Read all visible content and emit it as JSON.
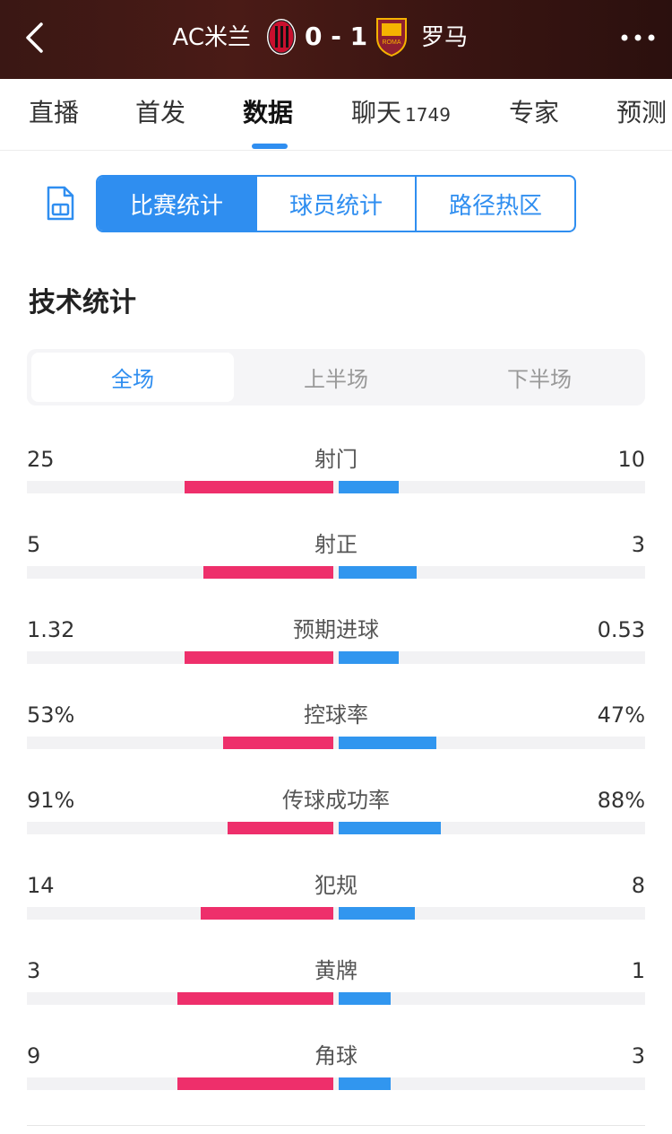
{
  "header": {
    "home_team": "AC米兰",
    "score": "0 - 1",
    "away_team": "罗马",
    "home_badge_text": "ACM",
    "away_badge_text": "ROMA",
    "colors": {
      "header_bg": "#3a1714",
      "home_badge": "#c8102e",
      "away_badge": "#8e1f2f"
    }
  },
  "tabs": [
    {
      "label": "直播"
    },
    {
      "label": "首发"
    },
    {
      "label": "数据",
      "active": true
    },
    {
      "label": "聊天",
      "count": "1749"
    },
    {
      "label": "专家"
    },
    {
      "label": "预测"
    }
  ],
  "segmented": [
    {
      "label": "比赛统计",
      "active": true
    },
    {
      "label": "球员统计"
    },
    {
      "label": "路径热区"
    }
  ],
  "section_title": "技术统计",
  "periods": [
    {
      "label": "全场",
      "active": true
    },
    {
      "label": "上半场"
    },
    {
      "label": "下半场"
    }
  ],
  "stats": [
    {
      "left": "25",
      "name": "射门",
      "right": "10",
      "left_share": 0.714,
      "right_share": 0.286
    },
    {
      "left": "5",
      "name": "射正",
      "right": "3",
      "left_share": 0.625,
      "right_share": 0.375
    },
    {
      "left": "1.32",
      "name": "预期进球",
      "right": "0.53",
      "left_share": 0.714,
      "right_share": 0.286
    },
    {
      "left": "53%",
      "name": "控球率",
      "right": "47%",
      "left_share": 0.53,
      "right_share": 0.47
    },
    {
      "left": "91%",
      "name": "传球成功率",
      "right": "88%",
      "left_share": 0.508,
      "right_share": 0.492
    },
    {
      "left": "14",
      "name": "犯规",
      "right": "8",
      "left_share": 0.636,
      "right_share": 0.364
    },
    {
      "left": "3",
      "name": "黄牌",
      "right": "1",
      "left_share": 0.75,
      "right_share": 0.25
    },
    {
      "left": "9",
      "name": "角球",
      "right": "3",
      "left_share": 0.75,
      "right_share": 0.25
    }
  ],
  "colors": {
    "accent": "#2f8ef0",
    "home_bar": "#ee2f6b",
    "away_bar": "#3196ef"
  }
}
